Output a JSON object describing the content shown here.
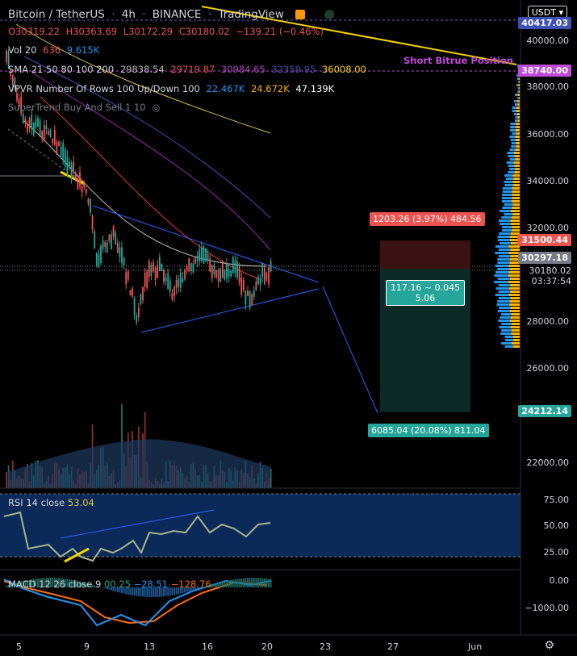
{
  "header": {
    "symbol": "Bitcoin / TetherUS",
    "interval": "4h",
    "exchange": "BINANCE",
    "platform": "TradingView",
    "ohlc": {
      "o": "O30319.22",
      "h": "H30363.69",
      "l": "L30172.29",
      "c": "C30180.02",
      "chg": "−139.21 (−0.46%)"
    },
    "vol": {
      "label": "Vol 20",
      "v1": "636",
      "v2": "9.615K"
    },
    "sma": {
      "label": "SMA 21 50 80 100 200",
      "v1": "29838.54",
      "v2": "29719.87",
      "v3": "30984.65",
      "v4": "32359.95",
      "v5": "36008.00"
    },
    "vpvr": {
      "label": "VPVR Number Of Rows 100 Up/Down 100",
      "v1": "22.467K",
      "v2": "24.672K",
      "v3": "47.139K"
    },
    "supertrend": "SuperTrend Buy And Sell 1 10"
  },
  "currency": "USDT",
  "price_axis": [
    "40000.00",
    "38000.00",
    "36000.00",
    "34000.00",
    "32000.00",
    "28000.00",
    "26000.00",
    "22000.00"
  ],
  "price_tags": {
    "top": "40417.03",
    "short_line": "38740.00",
    "stop": "31500.44",
    "current": "30297.18",
    "last": "30180.02",
    "countdown": "03:37:54",
    "target": "24212.14"
  },
  "annotations": {
    "short_position": "Short Bitrue Position",
    "risk_box": "1203.26 (3.97%) 484.56",
    "ratio_line1": "117.16 ~ 0.045",
    "ratio_line2": "5.06",
    "reward_box": "6085.04 (20.08%) 811.04"
  },
  "rsi": {
    "label": "RSI 14 close",
    "value": "53.04",
    "axis": [
      "75.00",
      "50.00",
      "25.00"
    ]
  },
  "macd": {
    "label": "MACD 12 26 close 9",
    "v1": "00.25",
    "v2": "−28.51",
    "v3": "−128.76",
    "axis": [
      "0.00",
      "−1000.00"
    ]
  },
  "x_axis": [
    "5",
    "9",
    "13",
    "16",
    "20",
    "23",
    "27",
    "Jun"
  ],
  "colors": {
    "up": "#26a69a",
    "down": "#ef5350",
    "bg": "#000000",
    "accent": "#2962ff"
  }
}
